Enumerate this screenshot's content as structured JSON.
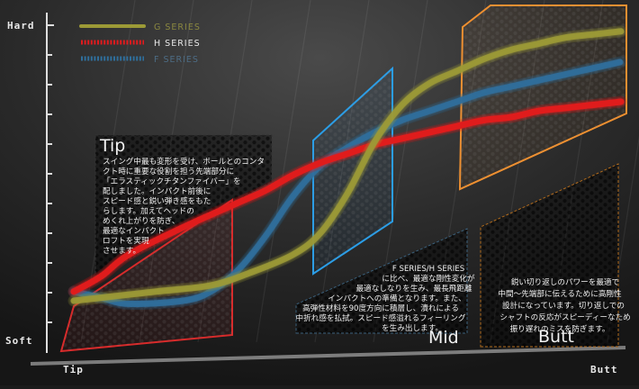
{
  "chart_data": {
    "type": "line",
    "ylabel_top": "Hard",
    "ylabel_bottom": "Soft",
    "xlabel_left": "Tip",
    "xlabel_right": "Butt",
    "series": [
      {
        "name": "G SERIES",
        "color": "#9c9a36",
        "x": [
          0,
          5,
          15,
          25,
          32,
          40,
          45,
          50,
          55,
          60,
          65,
          70,
          75,
          80,
          85,
          90,
          95,
          100
        ],
        "y": [
          10,
          11,
          13,
          15,
          19,
          25,
          32,
          45,
          62,
          74,
          81,
          85,
          89,
          92,
          94,
          96,
          97,
          98
        ]
      },
      {
        "name": "H SERIES",
        "color": "#e01b1e",
        "x": [
          0,
          5,
          10,
          20,
          30,
          35,
          40,
          45,
          50,
          55,
          60,
          65,
          70,
          75,
          80,
          85,
          90,
          95,
          100
        ],
        "y": [
          13,
          18,
          25,
          34,
          42,
          46,
          51,
          55,
          58,
          61,
          63,
          65,
          67,
          69,
          70,
          72,
          73,
          74,
          75
        ]
      },
      {
        "name": "F SERIES",
        "color": "#2f6f9c",
        "x": [
          0,
          5,
          10,
          20,
          25,
          30,
          35,
          40,
          45,
          50,
          55,
          60,
          65,
          70,
          75,
          80,
          85,
          90,
          95,
          100
        ],
        "y": [
          13,
          11,
          9,
          10,
          13,
          20,
          31,
          44,
          54,
          60,
          65,
          69,
          72,
          75,
          78,
          80,
          82,
          84,
          86,
          88
        ]
      }
    ]
  },
  "panels": {
    "tip": {
      "title": "Tip",
      "lines": [
        "スイング中最も変形を受け、ボールとのコンタ",
        "クト時に重要な役割を担う先端部分に",
        "「エラスティックチタンファイバー」を",
        "配しました。インパクト前後に",
        "スピード感と鋭い弾き感をもた",
        "らします。加えてヘッドの",
        "めくれ上がりを防ぎ、",
        "最適なインパクト",
        "ロフトを実現",
        "させます。"
      ]
    },
    "mid": {
      "title": "Mid",
      "lines": [
        "F SERIES/H SERIES",
        "に比べ、最適な剛性変化が",
        "最適なしなりを生み、最長飛距離",
        "インパクトへの準備となります。また、",
        "高弾性材料を90度方向に積層し、潰れによる",
        "中折れ感を払拭。スピード感溢れるフィーリング",
        "を生み出します。"
      ]
    },
    "butt": {
      "title": "Butt",
      "lines": [
        "鋭い切り返しのパワーを最適で",
        "中間～先端部に伝えるために高剛性",
        "設計になっています。切り返しでの",
        "シャフトの反応がスピーディーなため",
        "振り遅れのミスを防ぎます。"
      ]
    }
  }
}
